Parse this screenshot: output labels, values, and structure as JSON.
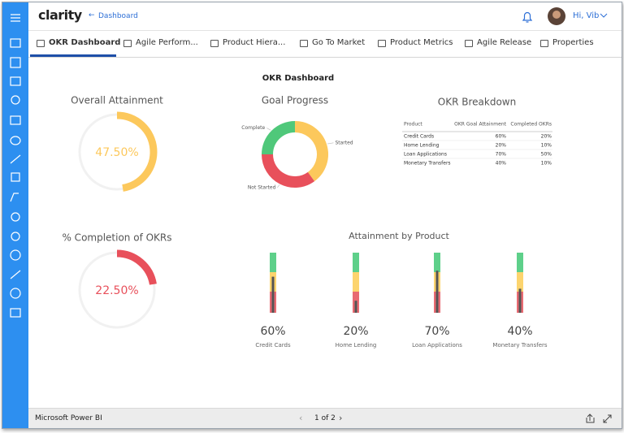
{
  "header": {
    "logo": "clarity",
    "back_link": "Dashboard",
    "greeting": "Hi, Vib"
  },
  "tabs": [
    "OKR Dashboard",
    "Agile Perform...",
    "Product Hiera...",
    "Go To Market",
    "Product Metrics",
    "Agile Release",
    "Properties"
  ],
  "active_tab": 0,
  "report": {
    "title": "OKR Dashboard",
    "overall_attainment": {
      "title": "Overall Attainment",
      "value": 47.5,
      "label": "47.50%",
      "range": [
        0,
        100
      ],
      "color": "#fcc85c"
    },
    "completion": {
      "title": "% Completion of OKRs",
      "value": 22.5,
      "label": "22.50%",
      "range": [
        0,
        100
      ],
      "color": "#e8505b"
    },
    "goal_progress": {
      "title": "Goal Progress",
      "segments": [
        {
          "name": "Complete",
          "value": 25,
          "color": "#4fc87a"
        },
        {
          "name": "Started",
          "value": 40,
          "color": "#fcc85c"
        },
        {
          "name": "Not Started",
          "value": 35,
          "color": "#e8505b"
        }
      ]
    },
    "okr_breakdown": {
      "title": "OKR Breakdown",
      "columns": [
        "Product",
        "OKR Goal Attainment",
        "Completed OKRs"
      ],
      "rows": [
        [
          "Credit Cards",
          "60%",
          "20%"
        ],
        [
          "Home Lending",
          "20%",
          "10%"
        ],
        [
          "Loan Applications",
          "70%",
          "50%"
        ],
        [
          "Monetary Transfers",
          "40%",
          "10%"
        ]
      ]
    },
    "attainment_by_product": {
      "title": "Attainment by Product",
      "range": [
        0,
        100
      ],
      "items": [
        {
          "name": "Credit Cards",
          "value": 60,
          "label": "60%"
        },
        {
          "name": "Home Lending",
          "value": 20,
          "label": "20%"
        },
        {
          "name": "Loan Applications",
          "value": 70,
          "label": "70%"
        },
        {
          "name": "Monetary Transfers",
          "value": 40,
          "label": "40%"
        }
      ]
    }
  },
  "footer": {
    "brand": "Microsoft Power BI",
    "pager": "1 of 2"
  }
}
